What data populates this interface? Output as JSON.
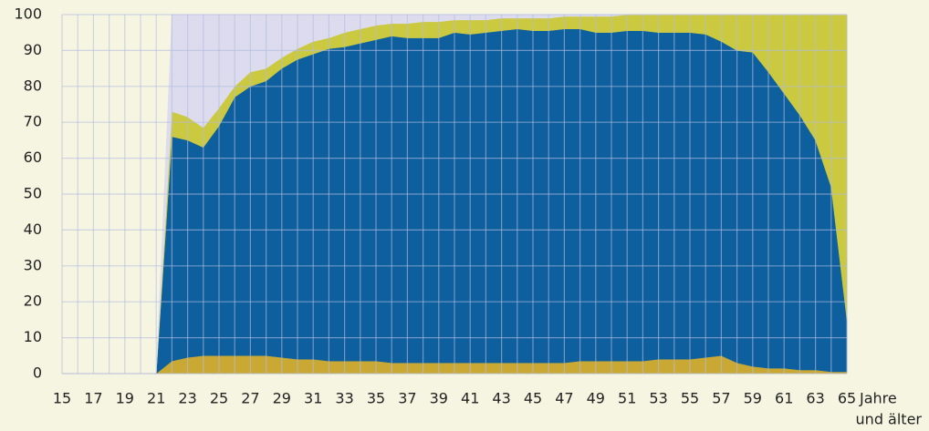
{
  "chart_data": {
    "type": "stacked-area",
    "x": [
      15,
      16,
      17,
      18,
      19,
      20,
      21,
      22,
      23,
      24,
      25,
      26,
      27,
      28,
      29,
      30,
      31,
      32,
      33,
      34,
      35,
      36,
      37,
      38,
      39,
      40,
      41,
      42,
      43,
      44,
      45,
      46,
      47,
      48,
      49,
      50,
      51,
      52,
      53,
      54,
      55,
      56,
      57,
      58,
      59,
      60,
      61,
      62,
      63,
      64,
      65
    ],
    "series": [
      {
        "color": "#c9a934",
        "values": [
          0,
          0,
          0,
          0,
          0,
          0,
          0,
          3.5,
          4.5,
          5,
          5,
          5,
          5,
          5,
          4.5,
          4,
          4,
          3.5,
          3.5,
          3.5,
          3.5,
          3,
          3,
          3,
          3,
          3,
          3,
          3,
          3,
          3,
          3,
          3,
          3,
          3.5,
          3.5,
          3.5,
          3.5,
          3.5,
          4,
          4,
          4,
          4.5,
          5,
          3,
          2,
          1.5,
          1.5,
          1,
          1,
          0.5,
          0.5
        ]
      },
      {
        "color": "#0e5f9d",
        "values": [
          0,
          0,
          0,
          0,
          0,
          0,
          0,
          62.5,
          60.5,
          58,
          64,
          72,
          75,
          76.5,
          80.5,
          83.5,
          85,
          87,
          87.5,
          88.5,
          89.5,
          91,
          90.5,
          90.5,
          90.5,
          92,
          91.5,
          92,
          92.5,
          93,
          92.5,
          92.5,
          93,
          92.5,
          91.5,
          91.5,
          92,
          92,
          91,
          91,
          91,
          90,
          87.5,
          87,
          87.5,
          82.5,
          76.5,
          71,
          64,
          51.5,
          14.5
        ]
      },
      {
        "color": "#cbc940",
        "values": [
          0,
          0,
          0,
          0,
          0,
          0,
          0,
          7,
          6.5,
          5.5,
          5,
          3,
          4,
          3.5,
          3,
          3,
          3.5,
          3,
          4,
          4,
          4,
          3.5,
          4,
          4.5,
          4.5,
          3.5,
          4,
          3.5,
          3.5,
          3,
          3.5,
          3.5,
          3.5,
          3.5,
          4.5,
          4.5,
          4.5,
          4.5,
          5,
          5,
          5,
          5.5,
          7.5,
          10,
          10.5,
          16,
          22,
          28,
          35,
          48,
          85
        ]
      },
      {
        "color": "#dcdcee",
        "values": [
          0,
          0,
          0,
          0,
          0,
          0,
          0,
          27,
          28.5,
          31.5,
          26,
          20,
          16,
          15,
          12,
          9.5,
          7.5,
          6.5,
          5,
          4,
          3,
          2.5,
          2.5,
          2,
          2,
          1.5,
          1.5,
          1.5,
          1,
          1,
          1,
          1,
          0.5,
          0.5,
          0.5,
          0.5,
          0,
          0,
          0,
          0,
          0,
          0,
          0,
          0,
          0,
          0,
          0,
          0,
          0,
          0,
          0
        ]
      }
    ],
    "xlim": [
      15,
      65
    ],
    "xticks": [
      15,
      17,
      19,
      21,
      23,
      25,
      27,
      29,
      31,
      33,
      35,
      37,
      39,
      41,
      43,
      45,
      47,
      49,
      51,
      53,
      55,
      57,
      59,
      61,
      63,
      65
    ],
    "x_label_lines": [
      "Jahre",
      "und älter"
    ],
    "ylim": [
      0,
      100
    ],
    "yticks": [
      0,
      10,
      20,
      30,
      40,
      50,
      60,
      70,
      80,
      90,
      100
    ],
    "grid": true
  }
}
